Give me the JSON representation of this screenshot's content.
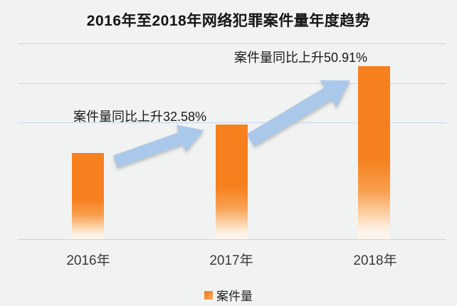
{
  "chart_data": {
    "type": "bar",
    "title": "2016年至2018年网络犯罪案件量年度趋势",
    "categories": [
      "2016年",
      "2017年",
      "2018年"
    ],
    "series": [
      {
        "name": "案件量",
        "relative_values": [
          1,
          1.3258,
          2.0009
        ]
      }
    ],
    "annotations": [
      {
        "text": "案件量同比上升32.58%",
        "refers_to": "2017年"
      },
      {
        "text": "案件量同比上升50.91%",
        "refers_to": "2018年"
      }
    ],
    "legend": {
      "label": "案件量",
      "position": "bottom"
    },
    "xlabel": "",
    "ylabel": "",
    "value_axis_labels_visible": false,
    "grid": "horizontal-top-3-lines",
    "layout_hints": {
      "trend_arrows": 2,
      "bars_fade_to_white_at_bottom": true
    },
    "colors": {
      "bar_top": "#f6801e",
      "arrow": "#aac8ea",
      "background": "#f1f2f2",
      "gridline": "#c8d8ec",
      "axis_line": "#ccd3e6",
      "title_text": "#141414",
      "annotation_text": "#1a1a1a"
    }
  }
}
